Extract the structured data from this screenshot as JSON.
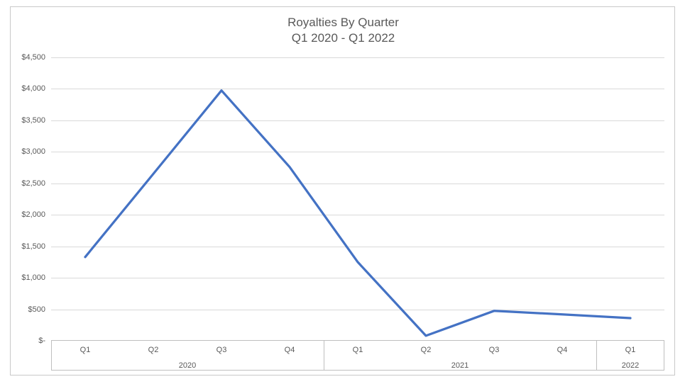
{
  "title": {
    "line1": "Royalties By Quarter",
    "line2": "Q1 2020 - Q1 2022"
  },
  "colors": {
    "series_line": "#4472C4",
    "gridline": "#d9d9d9",
    "axis_text": "#595959",
    "axis_border": "#bfbfbf"
  },
  "y_axis": {
    "tick_labels": [
      "$4,500",
      "$4,000",
      "$3,500",
      "$3,000",
      "$2,500",
      "$2,000",
      "$1,500",
      "$1,000",
      "$500",
      "$-"
    ],
    "max": 4500,
    "min": 0,
    "step": 500
  },
  "x_axis": {
    "quarter_labels": [
      "Q1",
      "Q2",
      "Q3",
      "Q4",
      "Q1",
      "Q2",
      "Q3",
      "Q4",
      "Q1"
    ],
    "year_groups": [
      {
        "label": "2020",
        "span": 4
      },
      {
        "label": "2021",
        "span": 4
      },
      {
        "label": "2022",
        "span": 1
      }
    ]
  },
  "chart_data": {
    "type": "line",
    "title": "Royalties By Quarter",
    "subtitle": "Q1 2020 - Q1 2022",
    "categories": [
      "Q1 2020",
      "Q2 2020",
      "Q3 2020",
      "Q4 2020",
      "Q1 2021",
      "Q2 2021",
      "Q3 2021",
      "Q4 2021",
      "Q1 2022"
    ],
    "series": [
      {
        "name": "Royalties",
        "values": [
          1330,
          2650,
          3975,
          2760,
          1250,
          80,
          475,
          420,
          360
        ]
      }
    ],
    "xlabel": "",
    "ylabel": "",
    "ylim": [
      0,
      4500
    ],
    "y_tick_step": 500,
    "y_tick_format": "$#,##0",
    "grid": "horizontal",
    "legend": "none",
    "line_color": "#4472C4",
    "markers": false
  }
}
